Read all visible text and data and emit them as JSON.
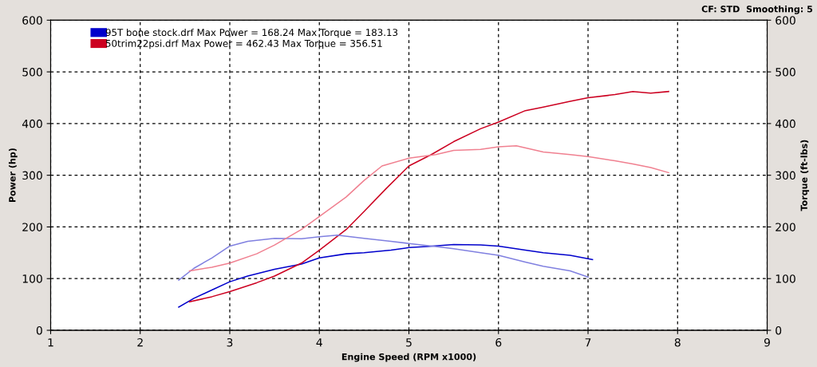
{
  "chart_data": {
    "type": "line",
    "xlabel": "Engine Speed (RPM x1000)",
    "ylabel": "Power (hp)",
    "y2label": "Torque (ft-lbs)",
    "annotations": [
      "CF: STD  Smoothing: 5"
    ],
    "xlim": [
      1,
      9
    ],
    "xticks": [
      1,
      2,
      3,
      4,
      5,
      6,
      7,
      8,
      9
    ],
    "ylim": [
      0,
      600
    ],
    "yticks": [
      0,
      100,
      200,
      300,
      400,
      500,
      600
    ],
    "y2lim": [
      0,
      600
    ],
    "y2ticks": [
      0,
      100,
      200,
      300,
      400,
      500,
      600
    ],
    "grid": true,
    "legend": "top left",
    "line_style": "solid",
    "marker": "none",
    "series": [
      {
        "name": "95T bone stock.drf Max Power = 168.24 Max Torque = 183.13",
        "color": "#0000cc",
        "x": [
          2.43,
          2.6,
          2.8,
          3.0,
          3.2,
          3.5,
          3.8,
          4.0,
          4.3,
          4.5,
          4.8,
          5.0,
          5.2,
          5.5,
          5.8,
          6.0,
          6.3,
          6.5,
          6.8,
          7.05
        ],
        "values": [
          45,
          62,
          78,
          94,
          105,
          118,
          128,
          140,
          148,
          150,
          155,
          160,
          162,
          166,
          165,
          163,
          155,
          150,
          145,
          137
        ]
      },
      {
        "color": "#8080e0",
        "axis": "y2",
        "x": [
          2.43,
          2.6,
          2.8,
          3.0,
          3.2,
          3.5,
          3.8,
          4.0,
          4.2,
          4.5,
          4.8,
          5.0,
          5.3,
          5.5,
          5.8,
          6.0,
          6.3,
          6.5,
          6.8,
          7.0
        ],
        "values": [
          97,
          120,
          140,
          163,
          172,
          178,
          177,
          181,
          184,
          178,
          172,
          168,
          162,
          158,
          150,
          145,
          132,
          124,
          115,
          103
        ]
      },
      {
        "name": "50trim22psi.drf Max Power = 462.43 Max Torque = 356.51",
        "color": "#cc0020",
        "x": [
          2.55,
          2.8,
          3.0,
          3.3,
          3.5,
          3.8,
          4.0,
          4.3,
          4.5,
          4.75,
          5.0,
          5.25,
          5.5,
          5.8,
          6.0,
          6.3,
          6.5,
          6.8,
          7.0,
          7.3,
          7.5,
          7.7,
          7.9
        ],
        "values": [
          55,
          65,
          75,
          92,
          105,
          130,
          155,
          195,
          230,
          275,
          318,
          340,
          365,
          390,
          403,
          425,
          432,
          443,
          450,
          456,
          462,
          459,
          462
        ]
      },
      {
        "color": "#f08090",
        "axis": "y2",
        "x": [
          2.55,
          2.8,
          3.0,
          3.3,
          3.5,
          3.8,
          4.0,
          4.3,
          4.5,
          4.7,
          5.0,
          5.3,
          5.5,
          5.8,
          6.0,
          6.2,
          6.5,
          6.8,
          7.0,
          7.3,
          7.5,
          7.7,
          7.9
        ],
        "values": [
          115,
          122,
          130,
          148,
          165,
          195,
          220,
          258,
          290,
          318,
          333,
          340,
          348,
          350,
          355,
          357,
          345,
          340,
          336,
          328,
          322,
          315,
          305
        ]
      }
    ]
  }
}
